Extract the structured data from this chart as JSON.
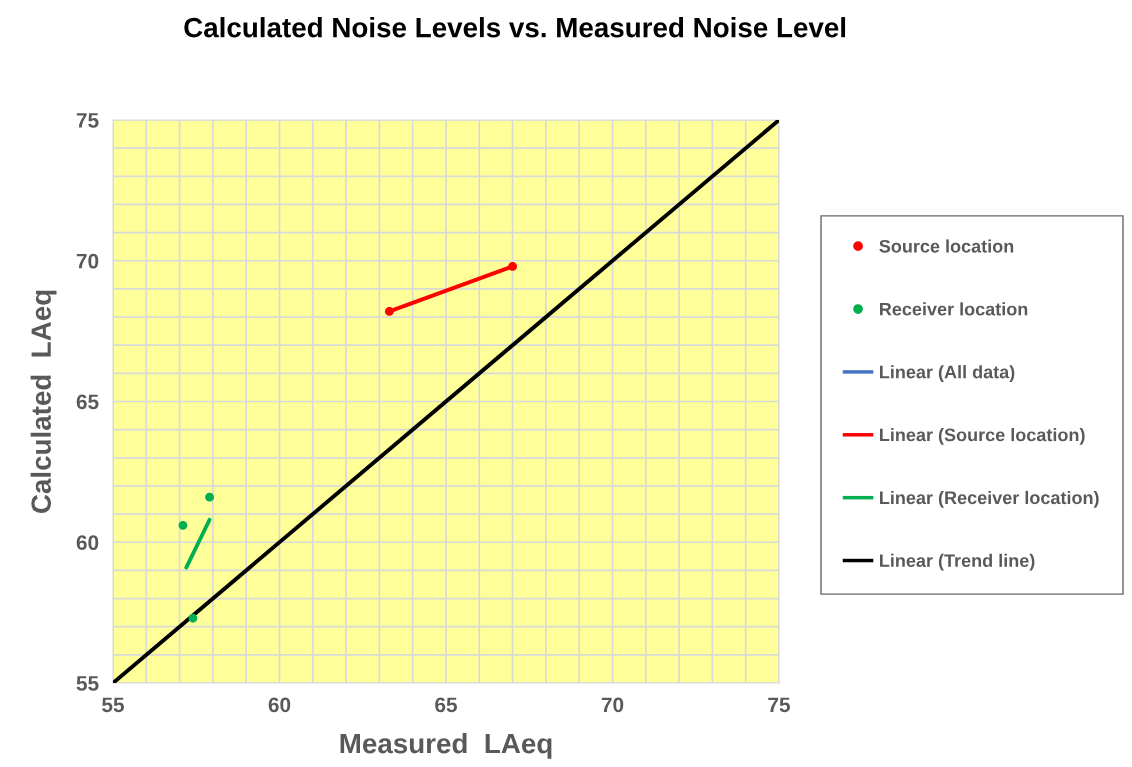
{
  "chart_data": {
    "type": "scatter",
    "title": "Calculated Noise Levels vs. Measured Noise Level",
    "xlabel": "Measured  LAeq",
    "ylabel": "Calculated  LAeq",
    "xlim": [
      55,
      75
    ],
    "ylim": [
      55,
      75
    ],
    "xticks": [
      55,
      {
        "value": 56,
        "label": null
      },
      {
        "value": 57,
        "label": null
      },
      {
        "value": 58,
        "label": null
      },
      {
        "value": 59,
        "label": null
      },
      60,
      {
        "value": 61,
        "label": null
      },
      {
        "value": 62,
        "label": null
      },
      {
        "value": 63,
        "label": null
      },
      {
        "value": 64,
        "label": null
      },
      65,
      {
        "value": 66,
        "label": null
      },
      {
        "value": 67,
        "label": null
      },
      {
        "value": 68,
        "label": null
      },
      {
        "value": 69,
        "label": null
      },
      70,
      {
        "value": 71,
        "label": null
      },
      {
        "value": 72,
        "label": null
      },
      {
        "value": 73,
        "label": null
      },
      {
        "value": 74,
        "label": null
      },
      75
    ],
    "yticks": [
      55,
      {
        "value": 56,
        "label": null
      },
      {
        "value": 57,
        "label": null
      },
      {
        "value": 58,
        "label": null
      },
      {
        "value": 59,
        "label": null
      },
      60,
      {
        "value": 61,
        "label": null
      },
      {
        "value": 62,
        "label": null
      },
      {
        "value": 63,
        "label": null
      },
      {
        "value": 64,
        "label": null
      },
      65,
      {
        "value": 66,
        "label": null
      },
      {
        "value": 67,
        "label": null
      },
      {
        "value": 68,
        "label": null
      },
      {
        "value": 69,
        "label": null
      },
      70,
      {
        "value": 71,
        "label": null
      },
      {
        "value": 72,
        "label": null
      },
      {
        "value": 73,
        "label": null
      },
      {
        "value": 74,
        "label": null
      },
      75
    ],
    "grid": true,
    "legend": "right",
    "series": [
      {
        "name": "Source location",
        "marker": "circle",
        "color": "#ff0000",
        "x": [
          63.3,
          67.0
        ],
        "values": [
          68.2,
          69.8
        ]
      },
      {
        "name": "Receiver location",
        "marker": "circle",
        "color": "#00b050",
        "x": [
          57.1,
          57.9,
          57.4
        ],
        "values": [
          60.6,
          61.6,
          57.3
        ]
      },
      {
        "name": "Linear (All data)",
        "type": "line",
        "color": "#4472c4"
      },
      {
        "name": "Linear (Source location)",
        "type": "line",
        "color": "#ff0000",
        "x": [
          63.3,
          67.0
        ],
        "values": [
          68.2,
          69.8
        ]
      },
      {
        "name": "Linear (Receiver location)",
        "type": "line",
        "color": "#00b050",
        "x": [
          57.2,
          57.9
        ],
        "values": [
          59.1,
          60.8
        ]
      },
      {
        "name": "Linear (Trend line)",
        "type": "line",
        "color": "#000000",
        "x": [
          55,
          75
        ],
        "values": [
          55,
          75
        ]
      }
    ]
  }
}
